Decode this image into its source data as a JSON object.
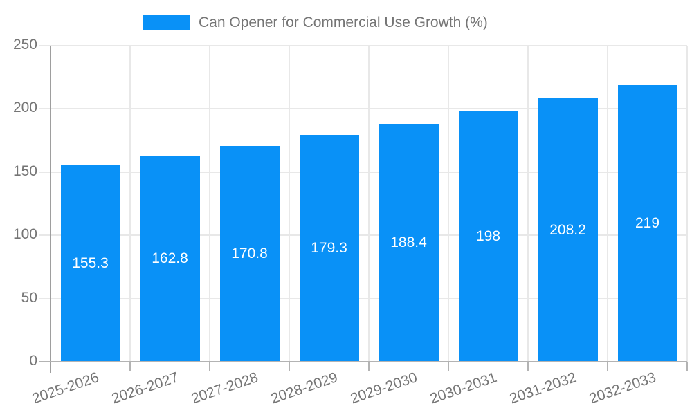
{
  "chart_data": {
    "type": "bar",
    "title": "Can Opener for Commercial Use Growth (%)",
    "legend": {
      "position": "top",
      "label": "Can Opener for Commercial Use Growth (%)",
      "swatch_color": "#0991f7"
    },
    "categories": [
      "2025-2026",
      "2026-2027",
      "2027-2028",
      "2028-2029",
      "2029-2030",
      "2030-2031",
      "2031-2032",
      "2032-2033"
    ],
    "series": [
      {
        "name": "Can Opener for Commercial Use Growth (%)",
        "values": [
          155.3,
          162.8,
          170.8,
          179.3,
          188.4,
          198,
          208.2,
          219
        ]
      }
    ],
    "value_labels": [
      "155.3",
      "162.8",
      "170.8",
      "179.3",
      "188.4",
      "198",
      "208.2",
      "219"
    ],
    "xlabel": "",
    "ylabel": "",
    "ylim": [
      0,
      250
    ],
    "yticks": [
      0,
      50,
      100,
      150,
      200,
      250
    ],
    "grid": true,
    "colors": {
      "bar": "#0991f7",
      "value_label": "#ffffff",
      "axis_text": "#757575",
      "gridline": "#e8e8e8",
      "axis_line": "#9e9e9e",
      "baseline": "#b3b3b3"
    }
  }
}
